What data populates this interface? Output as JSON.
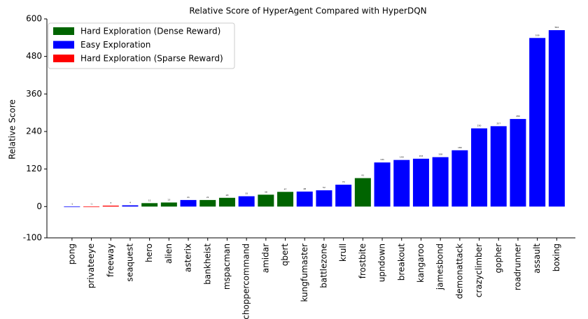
{
  "chart_data": {
    "type": "bar",
    "title": "Relative Score of HyperAgent Compared with HyperDQN",
    "y_label": "Relative Score",
    "categories": [
      "pong",
      "privateeye",
      "freeway",
      "seaquest",
      "hero",
      "alien",
      "asterix",
      "bankheist",
      "mspacman",
      "choppercommand",
      "amidar",
      "qbert",
      "kungfumaster",
      "battlezone",
      "krull",
      "frostbite",
      "upndown",
      "breakout",
      "kangaroo",
      "jamesbond",
      "demonattack",
      "crazyclimber",
      "gopher",
      "roadrunner",
      "assault",
      "boxing"
    ],
    "series": [
      {
        "name": "Hard Exploration (Dense Reward)",
        "color": "#006400",
        "values": [
          null,
          null,
          null,
          null,
          11,
          13,
          null,
          21,
          28,
          null,
          38,
          47,
          null,
          null,
          null,
          91,
          null,
          null,
          null,
          null,
          null,
          null,
          null,
          null,
          null,
          null
        ]
      },
      {
        "name": "Easy Exploration",
        "color": "#0000ff",
        "values": [
          -1,
          null,
          null,
          4,
          null,
          null,
          21,
          null,
          null,
          33,
          null,
          null,
          48,
          52,
          70,
          null,
          141,
          149,
          153,
          158,
          180,
          250,
          257,
          280,
          539,
          564
        ]
      },
      {
        "name": "Hard Exploration (Sparse Reward)",
        "color": "#ff0000",
        "values": [
          null,
          -1,
          3,
          null,
          null,
          null,
          null,
          null,
          null,
          null,
          null,
          null,
          null,
          null,
          null,
          null,
          null,
          null,
          null,
          null,
          null,
          null,
          null,
          null,
          null,
          null
        ]
      }
    ],
    "ylim": [
      -100,
      600
    ],
    "yticks": [
      -100,
      0,
      120,
      240,
      360,
      480,
      600
    ],
    "legend": "upper left"
  }
}
